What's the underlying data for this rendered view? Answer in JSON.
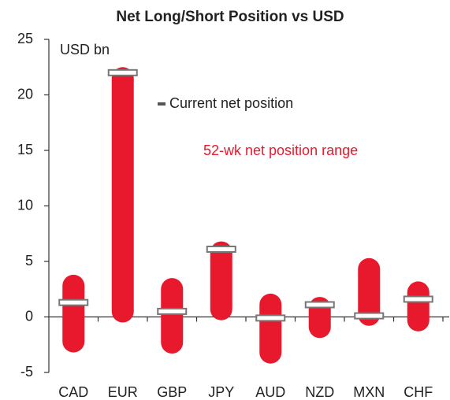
{
  "chart_data": {
    "type": "range_bar",
    "title": "Net Long/Short Position vs USD",
    "ylabel": "USD bn",
    "categories": [
      "CAD",
      "EUR",
      "GBP",
      "JPY",
      "AUD",
      "NZD",
      "MXN",
      "CHF"
    ],
    "series": [
      {
        "name": "52-wk net position range",
        "color": "#e8192c",
        "low": [
          -3.2,
          -0.5,
          -3.3,
          -0.3,
          -4.2,
          -1.9,
          -0.8,
          -1.3
        ],
        "high": [
          3.8,
          22.5,
          3.5,
          6.8,
          2.1,
          1.8,
          5.3,
          3.2
        ]
      },
      {
        "name": "Current net position",
        "color": "#ffffff",
        "edge": "#777777",
        "values": [
          1.3,
          22,
          0.5,
          6.1,
          -0.1,
          1.1,
          0.1,
          1.6
        ]
      }
    ],
    "ylim": [
      -5,
      25
    ],
    "yticks": [
      -5,
      0,
      5,
      10,
      15,
      20,
      25
    ],
    "grid": false
  }
}
